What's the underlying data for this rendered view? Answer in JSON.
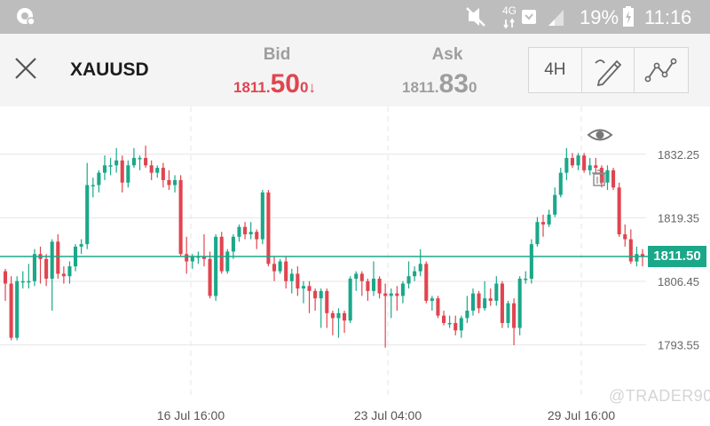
{
  "status_bar": {
    "network_label": "4G",
    "battery_percent": "19%",
    "time": "11:16",
    "icons": [
      "notification-icon",
      "mute-icon",
      "network-4g-icon",
      "message-icon",
      "signal-icon",
      "battery-charging-icon"
    ]
  },
  "header": {
    "symbol": "XAUUSD",
    "bid": {
      "label": "Bid",
      "prefix": "1811.",
      "big": "50",
      "suffix": "0",
      "arrow": "↓"
    },
    "ask": {
      "label": "Ask",
      "prefix": "1811.",
      "big": "83",
      "suffix": "0"
    },
    "timeframe": "4H",
    "tools": [
      "drawing-tools-icon",
      "indicators-icon"
    ]
  },
  "chart": {
    "current_price_label": "1811.50",
    "watermark": "@TRADER90",
    "colors": {
      "up": "#1aa889",
      "down": "#e0454f",
      "price_line": "#1aa889",
      "grid": "#e6e6e6"
    }
  },
  "chart_data": {
    "type": "candlestick",
    "y_ticks": [
      1832.25,
      1819.35,
      1806.45,
      1793.55
    ],
    "y_tick_labels": [
      "1832.25",
      "1819.35",
      "1806.45",
      "1793.55"
    ],
    "x_tick_labels": [
      "16 Jul  16:00",
      "23 Jul  04:00",
      "29 Jul  16:00"
    ],
    "ylim": [
      1782.5,
      1840.5
    ],
    "current_price": 1811.5,
    "grid": true,
    "candles": [
      [
        1808.5,
        1806.0,
        1802.5,
        1809.0
      ],
      [
        1806.0,
        1795.0,
        1794.5,
        1807.5
      ],
      [
        1795.0,
        1806.5,
        1794.5,
        1807.5
      ],
      [
        1806.5,
        1806.5,
        1805.0,
        1808.5
      ],
      [
        1806.5,
        1806.5,
        1805.0,
        1810.0
      ],
      [
        1806.5,
        1812.0,
        1805.5,
        1813.0
      ],
      [
        1812.0,
        1811.0,
        1806.0,
        1813.5
      ],
      [
        1811.0,
        1807.0,
        1805.5,
        1812.0
      ],
      [
        1807.0,
        1814.5,
        1800.5,
        1815.0
      ],
      [
        1814.5,
        1808.0,
        1807.0,
        1816.0
      ],
      [
        1808.0,
        1807.5,
        1806.0,
        1809.5
      ],
      [
        1807.5,
        1809.5,
        1806.0,
        1810.5
      ],
      [
        1809.5,
        1813.5,
        1808.5,
        1814.0
      ],
      [
        1813.5,
        1814.0,
        1812.0,
        1815.0
      ],
      [
        1814.0,
        1826.0,
        1813.0,
        1830.5
      ],
      [
        1826.0,
        1826.0,
        1823.5,
        1827.5
      ],
      [
        1826.0,
        1828.5,
        1824.5,
        1829.0
      ],
      [
        1828.5,
        1830.0,
        1827.0,
        1832.0
      ],
      [
        1830.0,
        1830.0,
        1828.0,
        1831.5
      ],
      [
        1830.0,
        1831.0,
        1828.5,
        1833.5
      ],
      [
        1831.0,
        1826.5,
        1824.5,
        1832.0
      ],
      [
        1826.5,
        1830.0,
        1825.5,
        1831.0
      ],
      [
        1830.0,
        1831.5,
        1829.5,
        1833.5
      ],
      [
        1831.5,
        1831.5,
        1829.0,
        1832.0
      ],
      [
        1831.5,
        1830.0,
        1829.5,
        1834.0
      ],
      [
        1830.0,
        1828.5,
        1827.0,
        1831.0
      ],
      [
        1828.5,
        1829.5,
        1827.5,
        1830.0
      ],
      [
        1829.5,
        1827.0,
        1825.5,
        1830.5
      ],
      [
        1827.0,
        1826.0,
        1825.0,
        1829.0
      ],
      [
        1826.0,
        1827.0,
        1824.5,
        1828.0
      ],
      [
        1827.0,
        1812.0,
        1811.5,
        1828.0
      ],
      [
        1812.0,
        1810.5,
        1808.0,
        1815.5
      ],
      [
        1810.5,
        1811.5,
        1809.0,
        1812.0
      ],
      [
        1811.5,
        1811.5,
        1810.0,
        1812.5
      ],
      [
        1811.5,
        1811.0,
        1809.5,
        1816.0
      ],
      [
        1811.0,
        1803.5,
        1803.0,
        1812.5
      ],
      [
        1803.5,
        1815.5,
        1802.5,
        1816.0
      ],
      [
        1815.5,
        1808.5,
        1808.0,
        1816.5
      ],
      [
        1808.5,
        1812.5,
        1808.0,
        1813.0
      ],
      [
        1812.5,
        1815.5,
        1811.0,
        1816.0
      ],
      [
        1815.5,
        1817.5,
        1814.5,
        1818.0
      ],
      [
        1817.5,
        1816.0,
        1815.0,
        1818.5
      ],
      [
        1816.0,
        1816.5,
        1815.0,
        1818.5
      ],
      [
        1816.5,
        1815.0,
        1813.0,
        1817.0
      ],
      [
        1815.0,
        1824.5,
        1814.0,
        1825.0
      ],
      [
        1824.5,
        1810.0,
        1809.5,
        1825.0
      ],
      [
        1810.0,
        1808.5,
        1806.5,
        1811.5
      ],
      [
        1808.5,
        1810.5,
        1808.0,
        1811.0
      ],
      [
        1810.5,
        1806.5,
        1805.0,
        1811.5
      ],
      [
        1806.5,
        1808.0,
        1804.0,
        1809.0
      ],
      [
        1808.0,
        1805.0,
        1803.5,
        1809.5
      ],
      [
        1805.0,
        1805.5,
        1802.0,
        1806.5
      ],
      [
        1805.5,
        1804.5,
        1800.0,
        1806.5
      ],
      [
        1804.5,
        1803.0,
        1800.5,
        1805.0
      ],
      [
        1803.0,
        1804.5,
        1797.0,
        1805.0
      ],
      [
        1804.5,
        1800.0,
        1797.0,
        1805.0
      ],
      [
        1800.0,
        1799.0,
        1795.5,
        1800.5
      ],
      [
        1799.0,
        1800.0,
        1795.0,
        1801.0
      ],
      [
        1800.0,
        1798.5,
        1796.0,
        1800.5
      ],
      [
        1798.5,
        1807.0,
        1798.0,
        1807.5
      ],
      [
        1807.0,
        1808.0,
        1804.5,
        1808.5
      ],
      [
        1808.0,
        1806.5,
        1803.5,
        1808.5
      ],
      [
        1806.5,
        1804.5,
        1802.5,
        1807.0
      ],
      [
        1804.5,
        1807.0,
        1803.5,
        1810.5
      ],
      [
        1807.0,
        1804.0,
        1803.0,
        1807.5
      ],
      [
        1804.0,
        1803.5,
        1793.0,
        1806.0
      ],
      [
        1803.5,
        1804.0,
        1799.0,
        1805.0
      ],
      [
        1804.0,
        1803.5,
        1800.5,
        1805.5
      ],
      [
        1803.5,
        1806.0,
        1802.0,
        1806.5
      ],
      [
        1806.0,
        1807.5,
        1805.0,
        1810.5
      ],
      [
        1807.5,
        1808.5,
        1806.5,
        1809.5
      ],
      [
        1808.5,
        1810.0,
        1807.5,
        1813.0
      ],
      [
        1810.0,
        1802.5,
        1802.0,
        1810.5
      ],
      [
        1802.5,
        1803.0,
        1800.5,
        1803.5
      ],
      [
        1803.0,
        1799.5,
        1799.0,
        1803.5
      ],
      [
        1799.5,
        1798.0,
        1797.5,
        1800.5
      ],
      [
        1798.0,
        1798.0,
        1797.0,
        1799.5
      ],
      [
        1798.0,
        1796.5,
        1795.5,
        1799.5
      ],
      [
        1796.5,
        1799.0,
        1795.0,
        1799.5
      ],
      [
        1799.0,
        1800.5,
        1798.0,
        1803.5
      ],
      [
        1800.5,
        1804.0,
        1799.5,
        1805.0
      ],
      [
        1804.0,
        1801.0,
        1800.0,
        1804.5
      ],
      [
        1801.0,
        1803.0,
        1800.5,
        1806.5
      ],
      [
        1803.0,
        1802.5,
        1801.5,
        1805.0
      ],
      [
        1802.5,
        1806.0,
        1801.5,
        1807.5
      ],
      [
        1806.0,
        1798.0,
        1797.0,
        1806.5
      ],
      [
        1798.0,
        1802.0,
        1797.0,
        1802.5
      ],
      [
        1802.0,
        1797.0,
        1793.5,
        1803.0
      ],
      [
        1797.0,
        1807.0,
        1795.5,
        1807.5
      ],
      [
        1807.0,
        1807.0,
        1806.0,
        1808.5
      ],
      [
        1807.0,
        1814.0,
        1806.0,
        1815.0
      ],
      [
        1814.0,
        1818.5,
        1813.5,
        1819.5
      ],
      [
        1818.5,
        1818.0,
        1815.5,
        1820.0
      ],
      [
        1818.0,
        1820.0,
        1817.5,
        1821.0
      ],
      [
        1820.0,
        1824.0,
        1819.5,
        1825.5
      ],
      [
        1824.0,
        1828.5,
        1823.5,
        1829.5
      ],
      [
        1828.5,
        1831.5,
        1827.0,
        1833.5
      ],
      [
        1831.5,
        1830.0,
        1829.5,
        1832.5
      ],
      [
        1830.0,
        1832.0,
        1829.0,
        1832.5
      ],
      [
        1832.0,
        1829.0,
        1828.5,
        1832.5
      ],
      [
        1829.0,
        1830.0,
        1828.0,
        1831.5
      ],
      [
        1830.0,
        1829.5,
        1828.5,
        1831.5
      ],
      [
        1829.5,
        1826.5,
        1825.5,
        1830.0
      ],
      [
        1826.5,
        1829.0,
        1825.0,
        1830.0
      ],
      [
        1829.0,
        1825.5,
        1825.0,
        1829.5
      ],
      [
        1825.5,
        1816.0,
        1815.5,
        1826.5
      ],
      [
        1816.0,
        1815.0,
        1813.5,
        1818.0
      ],
      [
        1815.0,
        1810.5,
        1810.0,
        1817.0
      ],
      [
        1810.5,
        1812.0,
        1809.5,
        1813.5
      ],
      [
        1812.0,
        1811.5,
        1809.5,
        1813.0
      ]
    ]
  }
}
